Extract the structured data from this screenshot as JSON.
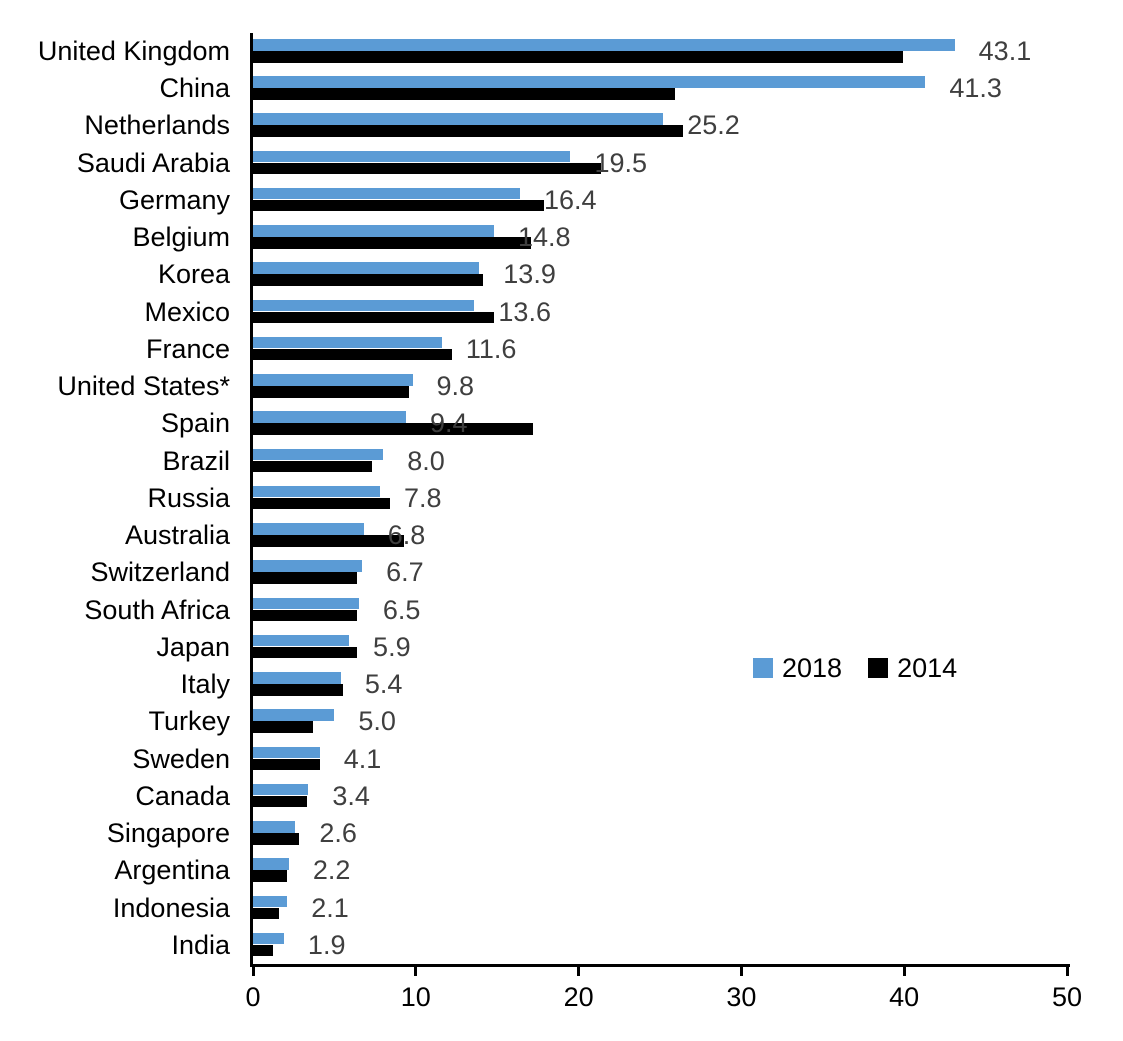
{
  "chart_data": {
    "type": "bar",
    "orientation": "horizontal",
    "title": "",
    "xlabel": "",
    "ylabel": "",
    "xlim": [
      0,
      50
    ],
    "x_ticks": [
      0,
      10,
      20,
      30,
      40,
      50
    ],
    "grid": false,
    "legend_position": "middle-right",
    "categories": [
      "United Kingdom",
      "China",
      "Netherlands",
      "Saudi Arabia",
      "Germany",
      "Belgium",
      "Korea",
      "Mexico",
      "France",
      "United States*",
      "Spain",
      "Brazil",
      "Russia",
      "Australia",
      "Switzerland",
      "South Africa",
      "Japan",
      "Italy",
      "Turkey",
      "Sweden",
      "Canada",
      "Singapore",
      "Argentina",
      "Indonesia",
      "India"
    ],
    "series": [
      {
        "name": "2018",
        "color": "#5B9BD5",
        "values": [
          43.1,
          41.3,
          25.2,
          19.5,
          16.4,
          14.8,
          13.9,
          13.6,
          11.6,
          9.8,
          9.4,
          8.0,
          7.8,
          6.8,
          6.7,
          6.5,
          5.9,
          5.4,
          5.0,
          4.1,
          3.4,
          2.6,
          2.2,
          2.1,
          1.9
        ]
      },
      {
        "name": "2014",
        "color": "#000000",
        "values": [
          39.9,
          25.9,
          26.4,
          21.4,
          17.9,
          17.1,
          14.1,
          14.8,
          12.2,
          9.6,
          17.2,
          7.3,
          8.4,
          9.3,
          6.4,
          6.4,
          6.4,
          5.5,
          3.7,
          4.1,
          3.3,
          2.8,
          2.1,
          1.6,
          1.2
        ]
      }
    ],
    "data_labels_series": "2018",
    "data_labels": [
      "43.1",
      "41.3",
      "25.2",
      "19.5",
      "16.4",
      "14.8",
      "13.9",
      "13.6",
      "11.6",
      "9.8",
      "9.4",
      "8.0",
      "7.8",
      "6.8",
      "6.7",
      "6.5",
      "5.9",
      "5.4",
      "5.0",
      "4.1",
      "3.4",
      "2.6",
      "2.2",
      "2.1",
      "1.9"
    ]
  },
  "legend": {
    "items": [
      {
        "label": "2018",
        "color": "#5B9BD5"
      },
      {
        "label": "2014",
        "color": "#000000"
      }
    ]
  },
  "colors": {
    "series_2018": "#5B9BD5",
    "series_2014": "#000000",
    "value_label": "#3f3f3f",
    "axis": "#000000",
    "background": "#ffffff"
  }
}
